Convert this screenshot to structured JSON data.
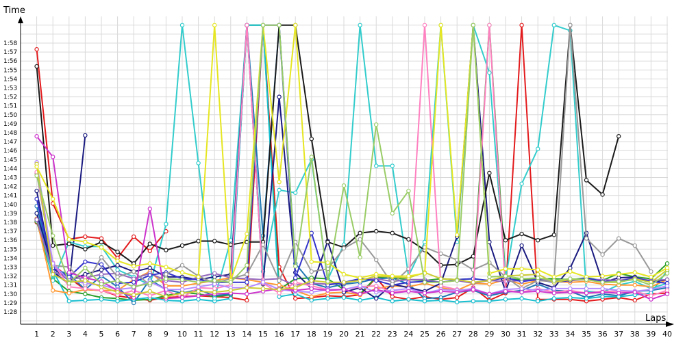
{
  "chart_data": {
    "type": "line",
    "ylabel": "Time",
    "xlabel": "Laps",
    "grid": true,
    "legend": "none",
    "ylim_seconds": [
      86,
      120
    ],
    "xlim": [
      0,
      40
    ],
    "x_ticks": [
      "1",
      "2",
      "3",
      "4",
      "5",
      "6",
      "7",
      "8",
      "9",
      "10",
      "11",
      "12",
      "13",
      "14",
      "15",
      "16",
      "17",
      "18",
      "19",
      "20",
      "21",
      "22",
      "23",
      "24",
      "25",
      "26",
      "27",
      "28",
      "29",
      "30",
      "31",
      "32",
      "33",
      "34",
      "35",
      "36",
      "37",
      "38",
      "39",
      "40"
    ],
    "y_ticks": [
      "1:28",
      "1:29",
      "1:30",
      "1:31",
      "1:32",
      "1:33",
      "1:34",
      "1:35",
      "1:36",
      "1:37",
      "1:38",
      "1:39",
      "1:40",
      "1:41",
      "1:42",
      "1:43",
      "1:44",
      "1:45",
      "1:46",
      "1:47",
      "1:48",
      "1:49",
      "1:50",
      "1:51",
      "1:52",
      "1:53",
      "1:54",
      "1:55",
      "1:56",
      "1:57",
      "1:58"
    ],
    "series": [
      {
        "color": "#e31a1c",
        "values": [
          117.3,
          100.1,
          96.1,
          96.4,
          96.2,
          94.0,
          96.4,
          94.8,
          97.0,
          null,
          null,
          null,
          null,
          null,
          null,
          null,
          null,
          null,
          null,
          null,
          null,
          null,
          null,
          null,
          null,
          null,
          null,
          null,
          null,
          null,
          null,
          null,
          null,
          null,
          null,
          null,
          null,
          null,
          null,
          null
        ]
      },
      {
        "color": "#1a1a80",
        "values": [
          101.5,
          92.5,
          91.1,
          107.7,
          null,
          null,
          null,
          null,
          null,
          null,
          null,
          null,
          null,
          null,
          null,
          null,
          null,
          null,
          null,
          null,
          null,
          null,
          null,
          null,
          null,
          null,
          null,
          null,
          null,
          null,
          null,
          null,
          null,
          null,
          null,
          null,
          null,
          null,
          null,
          null
        ]
      },
      {
        "color": "#e31a1c",
        "values": [
          98.0,
          93.3,
          91.8,
          90.5,
          90.4,
          89.8,
          89.5,
          89.3,
          89.6,
          89.7,
          89.8,
          89.7,
          89.6,
          89.3,
          120.0,
          93.0,
          89.5,
          89.6,
          89.8,
          89.7,
          89.9,
          91.8,
          89.7,
          89.4,
          89.7,
          89.4,
          89.6,
          90.7,
          89.3,
          90.1,
          120.0,
          89.4,
          89.4,
          89.4,
          89.2,
          89.4,
          89.6,
          89.3,
          90.0,
          90.1
        ]
      },
      {
        "color": "#2ca02c",
        "values": [
          98.1,
          91.7,
          90.3,
          90.0,
          89.6,
          89.5,
          89.3,
          89.4,
          89.8,
          90.2,
          90.0,
          89.7,
          89.9,
          120.0,
          120.0,
          90.5,
          91.7,
          91.8,
          91.7,
          90.5,
          90.0,
          91.9,
          91.8,
          91.6,
          91.5,
          91.7,
          91.6,
          91.7,
          120.0,
          91.7,
          91.6,
          91.7,
          91.7,
          91.6,
          91.8,
          91.5,
          92.3,
          91.9,
          91.7,
          93.4
        ]
      },
      {
        "color": "#1f77b4",
        "values": [
          99.8,
          92.8,
          92.2,
          90.5,
          92.0,
          90.8,
          89.0,
          91.6,
          90.5,
          90.1,
          90.5,
          89.8,
          90.0,
          120.0,
          96.5,
          120.0,
          93.4,
          91.2,
          90.7,
          91.1,
          91.3,
          91.7,
          91.8,
          91.1,
          89.5,
          89.6,
          90.2,
          90.4,
          89.8,
          90.2,
          90.4,
          91.1,
          90.4,
          90.3,
          89.6,
          90.0,
          89.8,
          90.3,
          90.4,
          90.7
        ]
      },
      {
        "color": "#17becf",
        "values": [
          98.4,
          92.6,
          89.2,
          89.3,
          89.4,
          89.2,
          89.4,
          89.6,
          89.3,
          89.2,
          89.4,
          89.2,
          89.5,
          120.0,
          120.0,
          89.7,
          90.0,
          89.3,
          89.5,
          89.6,
          89.3,
          89.6,
          89.2,
          89.4,
          89.2,
          89.3,
          89.1,
          89.2,
          89.2,
          89.4,
          89.5,
          89.2,
          89.5,
          89.6,
          89.5,
          89.7,
          89.7,
          89.9,
          90.1,
          92.6
        ]
      },
      {
        "color": "#33cccc",
        "values": [
          99.0,
          91.5,
          95.8,
          95.3,
          95.3,
          92.7,
          91.9,
          91.0,
          97.8,
          120.0,
          104.6,
          89.5,
          96.0,
          120.0,
          92.5,
          101.6,
          101.3,
          105.0,
          91.6,
          95.5,
          120.0,
          104.3,
          104.3,
          92.0,
          95.8,
          120.0,
          95.8,
          120.0,
          114.7,
          91.7,
          102.3,
          106.2,
          120.0,
          119.4,
          90.3,
          90.2,
          91.0,
          91.4,
          90.6,
          91.2
        ]
      },
      {
        "color": "#ff9933",
        "values": [
          98.4,
          90.4,
          90.1,
          90.5,
          90.4,
          90.4,
          91.6,
          92.5,
          90.9,
          90.9,
          91.2,
          91.5,
          91.8,
          91.6,
          91.3,
          91.0,
          90.4,
          89.7,
          90.1,
          90.2,
          89.9,
          90.6,
          90.9,
          90.8,
          91.2,
          90.7,
          90.4,
          91.2,
          91.1,
          91.6,
          91.1,
          91.5,
          91.4,
          91.3,
          91.4,
          91.1,
          91.0,
          91.0,
          90.8,
          91.6
        ]
      },
      {
        "color": "#1a1a80",
        "values": [
          99.0,
          92.9,
          91.5,
          92.2,
          92.7,
          93.2,
          92.5,
          92.9,
          91.9,
          91.9,
          91.6,
          91.9,
          92.2,
          120.0,
          91.1,
          112.0,
          92.4,
          90.6,
          95.9,
          90.2,
          90.7,
          89.5,
          91.1,
          90.7,
          90.3,
          91.2,
          96.4,
          120.0,
          95.8,
          90.3,
          95.4,
          91.3,
          90.7,
          92.9,
          96.8,
          91.3,
          91.8,
          91.9,
          91.3,
          91.6
        ]
      },
      {
        "color": "#9467bd",
        "values": [
          98.3,
          92.5,
          91.7,
          91.8,
          92.2,
          92.3,
          91.7,
          92.3,
          91.5,
          91.3,
          91.9,
          92.3,
          91.8,
          91.7,
          91.6,
          91.7,
          91.0,
          91.2,
          91.1,
          91.2,
          91.6,
          91.7,
          91.4,
          91.6,
          91.6,
          91.3,
          91.5,
          91.2,
          91.5,
          91.4,
          91.5,
          91.6,
          91.5,
          91.5,
          91.6,
          91.6,
          91.5,
          91.8,
          91.5,
          91.6
        ]
      },
      {
        "color": "#3333cc",
        "values": [
          100.6,
          92.9,
          91.9,
          93.6,
          93.3,
          91.2,
          91.3,
          92.1,
          92.4,
          91.7,
          91.6,
          91.3,
          91.3,
          91.3,
          120.0,
          120.0,
          91.8,
          96.8,
          91.0,
          91.3,
          91.7,
          91.5,
          91.0,
          91.3,
          91.4,
          91.3,
          91.6,
          91.7,
          91.5,
          91.8,
          91.4,
          91.6,
          91.3,
          91.5,
          91.8,
          91.4,
          91.4,
          91.8,
          91.4,
          91.2
        ]
      },
      {
        "color": "#1a1a1a",
        "values": [
          115.4,
          95.4,
          95.6,
          95.0,
          95.8,
          94.7,
          93.4,
          95.6,
          94.9,
          95.4,
          95.9,
          95.9,
          95.5,
          95.8,
          95.8,
          120.0,
          120.0,
          107.3,
          95.8,
          95.2,
          96.8,
          97.0,
          96.8,
          96.1,
          94.9,
          93.2,
          93.3,
          94.2,
          103.5,
          96.0,
          96.7,
          96.0,
          96.6,
          120.0,
          102.7,
          101.1,
          107.6,
          null,
          null,
          null
        ]
      },
      {
        "color": "#999999",
        "values": [
          103.4,
          93.2,
          93.0,
          91.0,
          94.1,
          91.9,
          92.5,
          91.0,
          92.2,
          93.2,
          92.0,
          91.2,
          91.7,
          92.2,
          95.5,
          91.5,
          95.8,
          92.5,
          92.8,
          95.1,
          96.1,
          93.8,
          91.1,
          92.8,
          95.2,
          94.5,
          93.8,
          92.7,
          93.5,
          91.9,
          90.6,
          91.5,
          91.4,
          120.0,
          96.2,
          94.4,
          96.2,
          95.4,
          92.5,
          null
        ]
      },
      {
        "color": "#ff80c0",
        "values": [
          103.6,
          93.5,
          90.8,
          90.6,
          90.4,
          89.9,
          90.4,
          89.8,
          90.4,
          89.6,
          90.7,
          90.6,
          91.0,
          120.0,
          91.2,
          90.1,
          91.3,
          90.9,
          90.5,
          90.5,
          90.8,
          90.9,
          90.2,
          90.4,
          120.0,
          90.9,
          90.5,
          90.4,
          120.0,
          90.4,
          90.2,
          90.6,
          90.2,
          90.4,
          90.1,
          90.3,
          90.3,
          90.3,
          89.8,
          90.4
        ]
      },
      {
        "color": "#b38aff",
        "values": [
          104.7,
          93.4,
          91.5,
          91.2,
          91.0,
          90.5,
          90.7,
          91.4,
          90.5,
          90.5,
          90.8,
          91.1,
          90.7,
          90.7,
          91.3,
          90.5,
          90.3,
          90.2,
          90.5,
          90.5,
          90.9,
          90.2,
          90.4,
          90.6,
          90.1,
          90.5,
          90.4,
          90.6,
          90.0,
          90.5,
          90.6,
          90.4,
          90.6,
          90.6,
          90.6,
          90.6,
          90.4,
          90.3,
          90.5,
          90.9
        ]
      },
      {
        "color": "#cc33cc",
        "values": [
          107.6,
          105.3,
          92.4,
          91.8,
          91.4,
          90.4,
          89.6,
          99.5,
          89.5,
          89.6,
          89.8,
          90.0,
          90.1,
          90.0,
          90.3,
          90.6,
          90.4,
          90.6,
          90.4,
          90.5,
          90.0,
          90.5,
          90.1,
          90.3,
          90.1,
          90.3,
          90.2,
          90.5,
          90.0,
          90.3,
          90.2,
          90.3,
          90.1,
          90.2,
          90.1,
          90.2,
          90.1,
          90.2,
          89.4,
          90.0
        ]
      },
      {
        "color": "#cccc33",
        "values": [
          104.5,
          92.2,
          91.3,
          91.5,
          90.8,
          90.2,
          89.9,
          90.3,
          89.7,
          90.1,
          90.3,
          90.2,
          90.4,
          90.7,
          90.6,
          90.5,
          90.7,
          91.5,
          91.3,
          91.3,
          91.5,
          92.0,
          91.9,
          91.8,
          92.4,
          91.7,
          91.6,
          91.3,
          91.5,
          92.0,
          92.1,
          92.2,
          91.3,
          91.6,
          91.6,
          91.3,
          91.3,
          91.7,
          91.3,
          92.7
        ]
      },
      {
        "color": "#e6e622",
        "values": [
          104.2,
          100.6,
          96.1,
          95.8,
          95.2,
          93.7,
          93.1,
          93.4,
          93.0,
          92.4,
          91.9,
          120.0,
          91.5,
          96.7,
          120.0,
          102.5,
          120.0,
          93.6,
          93.5,
          92.2,
          91.8,
          92.2,
          92.0,
          92.0,
          92.3,
          120.0,
          96.6,
          120.0,
          92.3,
          92.8,
          92.8,
          92.7,
          91.9,
          92.5,
          91.9,
          92.0,
          92.2,
          92.4,
          91.9,
          92.9
        ]
      },
      {
        "color": "#99cc66",
        "values": [
          103.2,
          96.5,
          91.2,
          92.9,
          91.1,
          91.5,
          90.8,
          91.2,
          91.7,
          91.6,
          91.3,
          91.5,
          91.3,
          93.2,
          120.0,
          120.0,
          93.1,
          105.3,
          91.4,
          102.1,
          94.1,
          108.9,
          99.0,
          101.5,
          91.3,
          91.3,
          91.5,
          120.0,
          91.9,
          92.0,
          91.7,
          91.8,
          91.5,
          91.7,
          91.6,
          91.3,
          91.4,
          91.6,
          91.0,
          92.3
        ]
      }
    ]
  }
}
